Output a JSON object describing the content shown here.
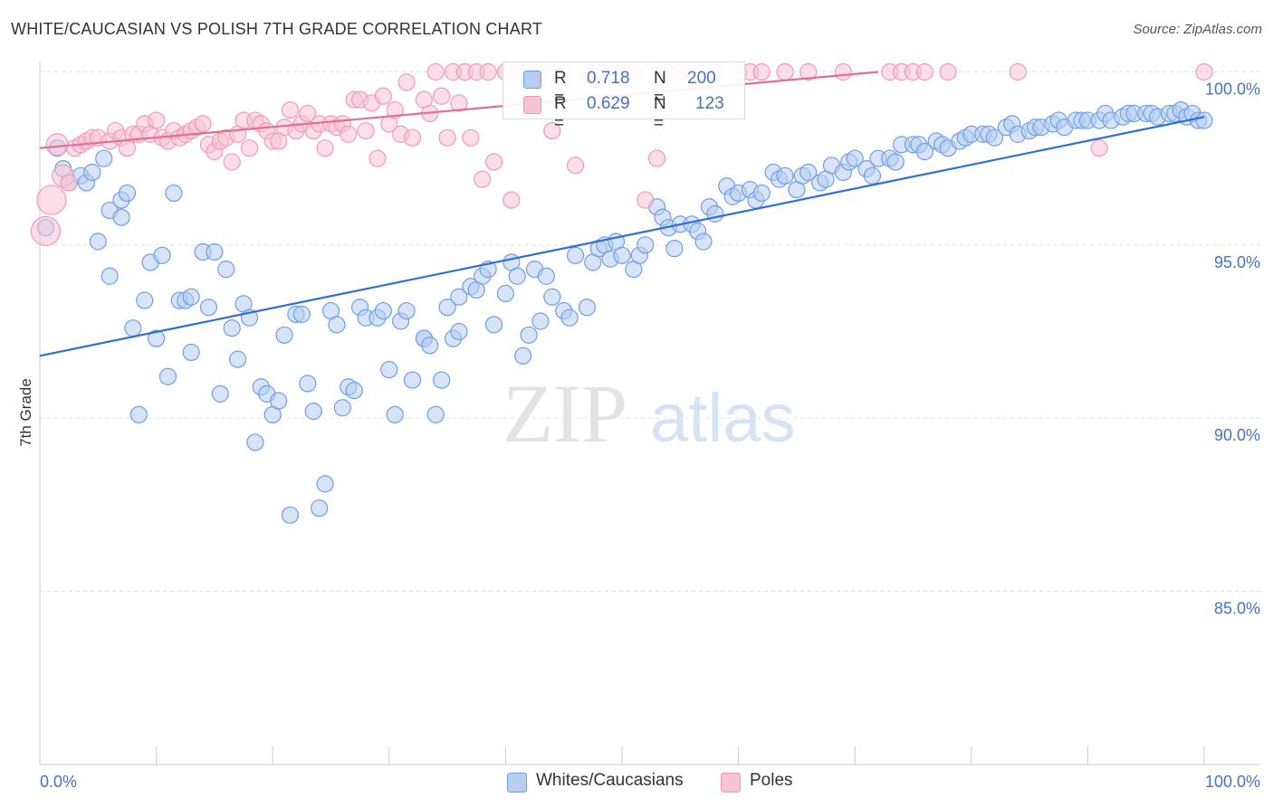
{
  "header": {
    "title": "WHITE/CAUCASIAN VS POLISH 7TH GRADE CORRELATION CHART",
    "source": "Source: ZipAtlas.com"
  },
  "watermark": {
    "zip": "ZIP",
    "atlas": "atlas"
  },
  "legend": {
    "r_label": "R =",
    "n_label": "N =",
    "series": [
      {
        "name": "Whites/Caucasians",
        "r": "0.718",
        "n": "200",
        "color": "#6f9ee8"
      },
      {
        "name": "Poles",
        "r": "0.629",
        "n": "123",
        "color": "#f29ab5"
      }
    ]
  },
  "axes": {
    "ylabel": "7th Grade",
    "xtick_left": "0.0%",
    "xtick_right": "100.0%",
    "yticks": [
      "100.0%",
      "95.0%",
      "90.0%",
      "85.0%"
    ]
  },
  "chart_data": {
    "type": "scatter",
    "title": "WHITE/CAUCASIAN VS POLISH 7TH GRADE CORRELATION CHART",
    "xlabel": "",
    "ylabel": "7th Grade",
    "xlim": [
      0,
      100
    ],
    "ylim": [
      80.2,
      100.5
    ],
    "yticks": [
      85,
      90,
      95,
      100
    ],
    "grid": true,
    "legend": "top-center",
    "series": [
      {
        "name": "Whites/Caucasians",
        "color": "#6f9ee8",
        "r": 0.718,
        "n": 200,
        "trend": {
          "x": [
            0,
            100
          ],
          "y": [
            91.8,
            98.7
          ]
        },
        "points": [
          [
            0.5,
            95.5
          ],
          [
            1.5,
            97.8
          ],
          [
            2,
            97.2
          ],
          [
            2.5,
            96.8
          ],
          [
            3.5,
            97
          ],
          [
            4,
            96.8
          ],
          [
            4.5,
            97.1
          ],
          [
            5,
            95.1
          ],
          [
            5.5,
            97.5
          ],
          [
            6,
            94.1
          ],
          [
            6,
            96
          ],
          [
            7,
            95.8
          ],
          [
            7,
            96.3
          ],
          [
            7.5,
            96.5
          ],
          [
            8,
            92.6
          ],
          [
            8.5,
            90.1
          ],
          [
            9,
            93.4
          ],
          [
            9.5,
            94.5
          ],
          [
            10,
            92.3
          ],
          [
            10.5,
            94.7
          ],
          [
            11,
            91.2
          ],
          [
            11.5,
            96.5
          ],
          [
            12,
            93.4
          ],
          [
            12.5,
            93.4
          ],
          [
            13,
            91.9
          ],
          [
            13,
            93.5
          ],
          [
            14,
            94.8
          ],
          [
            14.5,
            93.2
          ],
          [
            15,
            94.8
          ],
          [
            15.5,
            90.7
          ],
          [
            16,
            94.3
          ],
          [
            16.5,
            92.6
          ],
          [
            17,
            91.7
          ],
          [
            17.5,
            93.3
          ],
          [
            18,
            92.9
          ],
          [
            18.5,
            89.3
          ],
          [
            19,
            90.9
          ],
          [
            19.5,
            90.7
          ],
          [
            20,
            90.1
          ],
          [
            20.5,
            90.5
          ],
          [
            21,
            92.4
          ],
          [
            21.5,
            87.2
          ],
          [
            22,
            93
          ],
          [
            22.5,
            93
          ],
          [
            23,
            91
          ],
          [
            23.5,
            90.2
          ],
          [
            24,
            87.4
          ],
          [
            24.5,
            88.1
          ],
          [
            25,
            93.1
          ],
          [
            25.5,
            92.7
          ],
          [
            26,
            90.3
          ],
          [
            26.5,
            90.9
          ],
          [
            27,
            90.8
          ],
          [
            27.5,
            93.2
          ],
          [
            28,
            92.9
          ],
          [
            29,
            92.9
          ],
          [
            29.5,
            93.1
          ],
          [
            30,
            91.4
          ],
          [
            30.5,
            90.1
          ],
          [
            31,
            92.8
          ],
          [
            31.5,
            93.1
          ],
          [
            32,
            91.1
          ],
          [
            33,
            92.3
          ],
          [
            33,
            92.3
          ],
          [
            33.5,
            92.1
          ],
          [
            34,
            90.1
          ],
          [
            34.5,
            91.1
          ],
          [
            35,
            93.2
          ],
          [
            35.5,
            92.3
          ],
          [
            36,
            93.5
          ],
          [
            36,
            92.5
          ],
          [
            37,
            93.8
          ],
          [
            37.5,
            93.7
          ],
          [
            38,
            94.1
          ],
          [
            38.5,
            94.3
          ],
          [
            39,
            92.7
          ],
          [
            40,
            93.6
          ],
          [
            40.5,
            94.5
          ],
          [
            41,
            94.1
          ],
          [
            41.5,
            91.8
          ],
          [
            42,
            92.4
          ],
          [
            42.5,
            94.3
          ],
          [
            43,
            92.8
          ],
          [
            43.5,
            94.1
          ],
          [
            44,
            93.5
          ],
          [
            45,
            93.1
          ],
          [
            45.5,
            92.9
          ],
          [
            46,
            94.7
          ],
          [
            47,
            93.2
          ],
          [
            47.5,
            94.5
          ],
          [
            48,
            94.9
          ],
          [
            48.5,
            95
          ],
          [
            49,
            94.6
          ],
          [
            49.5,
            95.1
          ],
          [
            50,
            94.7
          ],
          [
            51,
            94.3
          ],
          [
            51.5,
            94.7
          ],
          [
            52,
            95
          ],
          [
            53,
            96.1
          ],
          [
            53.5,
            95.8
          ],
          [
            54,
            95.5
          ],
          [
            54.5,
            94.9
          ],
          [
            55,
            95.6
          ],
          [
            56,
            95.6
          ],
          [
            56.5,
            95.4
          ],
          [
            57,
            95.1
          ],
          [
            57.5,
            96.1
          ],
          [
            58,
            95.9
          ],
          [
            59,
            96.7
          ],
          [
            59.5,
            96.4
          ],
          [
            60,
            96.5
          ],
          [
            61,
            96.6
          ],
          [
            61.5,
            96.3
          ],
          [
            62,
            96.5
          ],
          [
            63,
            97.1
          ],
          [
            63.5,
            96.9
          ],
          [
            64,
            97
          ],
          [
            65,
            96.6
          ],
          [
            65.5,
            97
          ],
          [
            66,
            97.1
          ],
          [
            67,
            96.8
          ],
          [
            67.5,
            96.9
          ],
          [
            68,
            97.3
          ],
          [
            69,
            97.1
          ],
          [
            69.5,
            97.4
          ],
          [
            70,
            97.5
          ],
          [
            71,
            97.2
          ],
          [
            71.5,
            97
          ],
          [
            72,
            97.5
          ],
          [
            73,
            97.5
          ],
          [
            73.5,
            97.4
          ],
          [
            74,
            97.9
          ],
          [
            75,
            97.9
          ],
          [
            75.5,
            97.9
          ],
          [
            76,
            97.7
          ],
          [
            77,
            98
          ],
          [
            77.5,
            97.9
          ],
          [
            78,
            97.8
          ],
          [
            79,
            98
          ],
          [
            79.5,
            98.1
          ],
          [
            80,
            98.2
          ],
          [
            81,
            98.2
          ],
          [
            81.5,
            98.2
          ],
          [
            82,
            98.1
          ],
          [
            83,
            98.4
          ],
          [
            83.5,
            98.5
          ],
          [
            84,
            98.2
          ],
          [
            85,
            98.3
          ],
          [
            85.5,
            98.4
          ],
          [
            86,
            98.4
          ],
          [
            87,
            98.5
          ],
          [
            87.5,
            98.6
          ],
          [
            88,
            98.4
          ],
          [
            89,
            98.6
          ],
          [
            89.5,
            98.6
          ],
          [
            90,
            98.6
          ],
          [
            91,
            98.6
          ],
          [
            91.5,
            98.8
          ],
          [
            92,
            98.6
          ],
          [
            93,
            98.7
          ],
          [
            93.5,
            98.8
          ],
          [
            94,
            98.8
          ],
          [
            95,
            98.8
          ],
          [
            95.5,
            98.8
          ],
          [
            96,
            98.7
          ],
          [
            97,
            98.8
          ],
          [
            97.5,
            98.8
          ],
          [
            98,
            98.9
          ],
          [
            98.5,
            98.7
          ],
          [
            99,
            98.8
          ],
          [
            99.5,
            98.6
          ],
          [
            100,
            98.6
          ]
        ]
      },
      {
        "name": "Poles",
        "color": "#f29ab5",
        "r": 0.629,
        "n": 123,
        "trend": {
          "x": [
            0,
            72
          ],
          "y": [
            97.8,
            100
          ]
        },
        "points": [
          [
            0.5,
            95.4
          ],
          [
            1,
            96.3
          ],
          [
            1.5,
            97.9
          ],
          [
            2,
            97
          ],
          [
            2.5,
            96.8
          ],
          [
            3,
            97.8
          ],
          [
            3.5,
            97.9
          ],
          [
            4,
            98
          ],
          [
            4.5,
            98.1
          ],
          [
            5,
            98.1
          ],
          [
            6,
            98
          ],
          [
            6.5,
            98.3
          ],
          [
            7,
            98.1
          ],
          [
            7.5,
            97.8
          ],
          [
            8,
            98.2
          ],
          [
            8.5,
            98.2
          ],
          [
            9,
            98.5
          ],
          [
            9.5,
            98.2
          ],
          [
            10,
            98.6
          ],
          [
            10.5,
            98.1
          ],
          [
            11,
            98
          ],
          [
            11.5,
            98.3
          ],
          [
            12,
            98.1
          ],
          [
            12.5,
            98.2
          ],
          [
            13,
            98.3
          ],
          [
            13.5,
            98.4
          ],
          [
            14,
            98.5
          ],
          [
            14.5,
            97.9
          ],
          [
            15,
            97.7
          ],
          [
            15.5,
            98
          ],
          [
            16,
            98.1
          ],
          [
            16.5,
            97.4
          ],
          [
            17,
            98.2
          ],
          [
            17.5,
            98.6
          ],
          [
            18,
            97.8
          ],
          [
            18.5,
            98.6
          ],
          [
            19,
            98.5
          ],
          [
            19.5,
            98.3
          ],
          [
            20,
            98
          ],
          [
            20.5,
            98
          ],
          [
            21,
            98.4
          ],
          [
            21.5,
            98.9
          ],
          [
            22,
            98.3
          ],
          [
            22.5,
            98.5
          ],
          [
            23,
            98.8
          ],
          [
            23.5,
            98.3
          ],
          [
            24,
            98.5
          ],
          [
            24.5,
            97.8
          ],
          [
            25,
            98.5
          ],
          [
            25.5,
            98.4
          ],
          [
            26,
            98.5
          ],
          [
            26.5,
            98.2
          ],
          [
            27,
            99.2
          ],
          [
            27.5,
            99.2
          ],
          [
            28,
            98.3
          ],
          [
            28.5,
            99.1
          ],
          [
            29,
            97.5
          ],
          [
            29.5,
            99.3
          ],
          [
            30,
            98.5
          ],
          [
            30.5,
            98.9
          ],
          [
            31,
            98.2
          ],
          [
            31.5,
            99.7
          ],
          [
            32,
            98.1
          ],
          [
            33,
            99.2
          ],
          [
            33.5,
            98.8
          ],
          [
            34,
            100
          ],
          [
            34.5,
            99.3
          ],
          [
            35,
            98.1
          ],
          [
            35.5,
            100
          ],
          [
            36,
            99.1
          ],
          [
            36.5,
            100
          ],
          [
            37,
            98.1
          ],
          [
            37.5,
            100
          ],
          [
            38,
            96.9
          ],
          [
            38.5,
            100
          ],
          [
            39,
            97.4
          ],
          [
            40,
            100
          ],
          [
            40.5,
            96.3
          ],
          [
            41,
            100
          ],
          [
            42,
            100
          ],
          [
            43,
            100
          ],
          [
            44,
            98.3
          ],
          [
            45,
            100
          ],
          [
            46,
            97.3
          ],
          [
            47,
            100
          ],
          [
            48,
            100
          ],
          [
            49,
            100
          ],
          [
            50,
            100
          ],
          [
            51,
            100
          ],
          [
            52,
            96.3
          ],
          [
            53,
            97.5
          ],
          [
            54,
            100
          ],
          [
            55,
            100
          ],
          [
            56,
            100
          ],
          [
            57,
            100
          ],
          [
            58,
            100
          ],
          [
            60,
            100
          ],
          [
            61,
            100
          ],
          [
            62,
            100
          ],
          [
            64,
            100
          ],
          [
            66,
            100
          ],
          [
            69,
            100
          ],
          [
            73,
            100
          ],
          [
            74,
            100
          ],
          [
            75,
            100
          ],
          [
            76,
            100
          ],
          [
            78,
            100
          ],
          [
            84,
            100
          ],
          [
            91,
            97.8
          ],
          [
            100,
            100
          ]
        ]
      }
    ]
  }
}
